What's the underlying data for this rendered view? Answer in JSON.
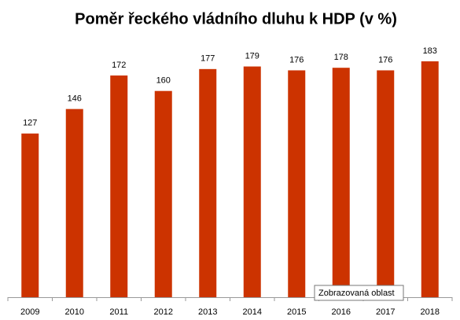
{
  "chart_data": {
    "type": "bar",
    "title": "Poměr řeckého vládního dluhu k HDP (v %)",
    "categories": [
      "2009",
      "2010",
      "2011",
      "2012",
      "2013",
      "2014",
      "2015",
      "2016",
      "2017",
      "2018"
    ],
    "values": [
      127,
      146,
      172,
      160,
      177,
      179,
      176,
      178,
      176,
      183
    ],
    "color": "#cc3300",
    "tooltip": "Zobrazovaná oblast"
  }
}
